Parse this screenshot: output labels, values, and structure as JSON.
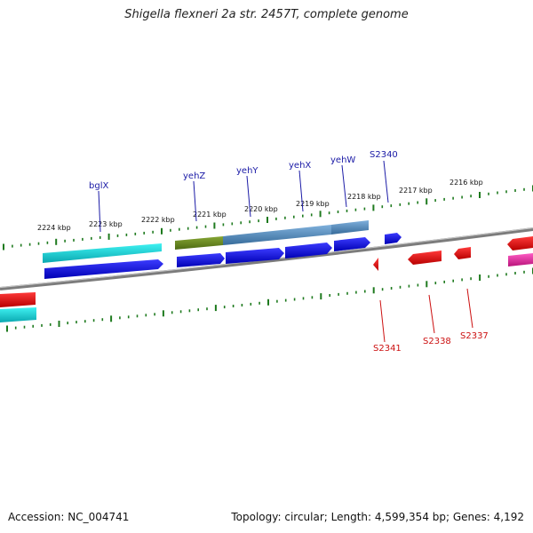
{
  "title": "Shigella flexneri 2a str. 2457T, complete genome",
  "footer": {
    "accession": "Accession: NC_004741",
    "summary": "Topology: circular; Length: 4,599,354 bp; Genes: 4,192"
  },
  "scale_labels": [
    "2224 kbp",
    "2223 kbp",
    "2222 kbp",
    "2221 kbp",
    "2220 kbp",
    "2219 kbp",
    "2218 kbp",
    "2217 kbp",
    "2216 kbp"
  ],
  "gene_labels_top": [
    "bglX",
    "yehZ",
    "yehY",
    "yehX",
    "yehW",
    "S2340"
  ],
  "gene_labels_bottom": [
    "S2341",
    "S2338",
    "S2337"
  ],
  "colors": {
    "ticks": "#1e7a1e",
    "backbone": "#808080",
    "gene_blue": "#0000e6",
    "gene_red": "#e60000",
    "gene_cyan": "#11d6d6",
    "gene_olive": "#6b8a1e",
    "gene_steel": "#4f86b8",
    "gene_magenta": "#e0209a"
  }
}
